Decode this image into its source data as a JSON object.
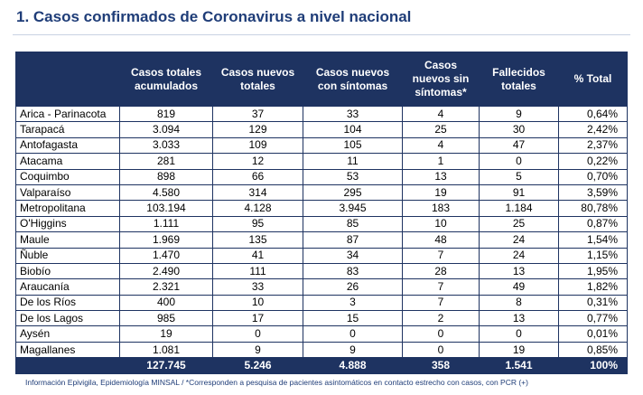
{
  "title": "1. Casos confirmados de Coronavirus a nivel nacional",
  "table": {
    "headers": [
      "",
      "Casos totales acumulados",
      "Casos nuevos totales",
      "Casos nuevos con síntomas",
      "Casos nuevos sin síntomas*",
      "Fallecidos totales",
      "% Total"
    ],
    "rows": [
      [
        "Arica - Parinacota",
        "819",
        "37",
        "33",
        "4",
        "9",
        "0,64%"
      ],
      [
        "Tarapacá",
        "3.094",
        "129",
        "104",
        "25",
        "30",
        "2,42%"
      ],
      [
        "Antofagasta",
        "3.033",
        "109",
        "105",
        "4",
        "47",
        "2,37%"
      ],
      [
        "Atacama",
        "281",
        "12",
        "11",
        "1",
        "0",
        "0,22%"
      ],
      [
        "Coquimbo",
        "898",
        "66",
        "53",
        "13",
        "5",
        "0,70%"
      ],
      [
        "Valparaíso",
        "4.580",
        "314",
        "295",
        "19",
        "91",
        "3,59%"
      ],
      [
        "Metropolitana",
        "103.194",
        "4.128",
        "3.945",
        "183",
        "1.184",
        "80,78%"
      ],
      [
        "O'Higgins",
        "1.111",
        "95",
        "85",
        "10",
        "25",
        "0,87%"
      ],
      [
        "Maule",
        "1.969",
        "135",
        "87",
        "48",
        "24",
        "1,54%"
      ],
      [
        "Ñuble",
        "1.470",
        "41",
        "34",
        "7",
        "24",
        "1,15%"
      ],
      [
        "Biobío",
        "2.490",
        "111",
        "83",
        "28",
        "13",
        "1,95%"
      ],
      [
        "Araucanía",
        "2.321",
        "33",
        "26",
        "7",
        "49",
        "1,82%"
      ],
      [
        "De los Ríos",
        "400",
        "10",
        "3",
        "7",
        "8",
        "0,31%"
      ],
      [
        "De los Lagos",
        "985",
        "17",
        "15",
        "2",
        "13",
        "0,77%"
      ],
      [
        "Aysén",
        "19",
        "0",
        "0",
        "0",
        "0",
        "0,01%"
      ],
      [
        "Magallanes",
        "1.081",
        "9",
        "9",
        "0",
        "19",
        "0,85%"
      ]
    ],
    "totals": [
      "",
      "127.745",
      "5.246",
      "4.888",
      "358",
      "1.541",
      "100%"
    ]
  },
  "footnote": "Información Epivigila, Epidemiología MINSAL / *Corresponden a pesquisa de pacientes asintomáticos en contacto estrecho con casos, con PCR (+)",
  "colors": {
    "header_bg": "#1e3361",
    "title": "#1f3d78"
  }
}
